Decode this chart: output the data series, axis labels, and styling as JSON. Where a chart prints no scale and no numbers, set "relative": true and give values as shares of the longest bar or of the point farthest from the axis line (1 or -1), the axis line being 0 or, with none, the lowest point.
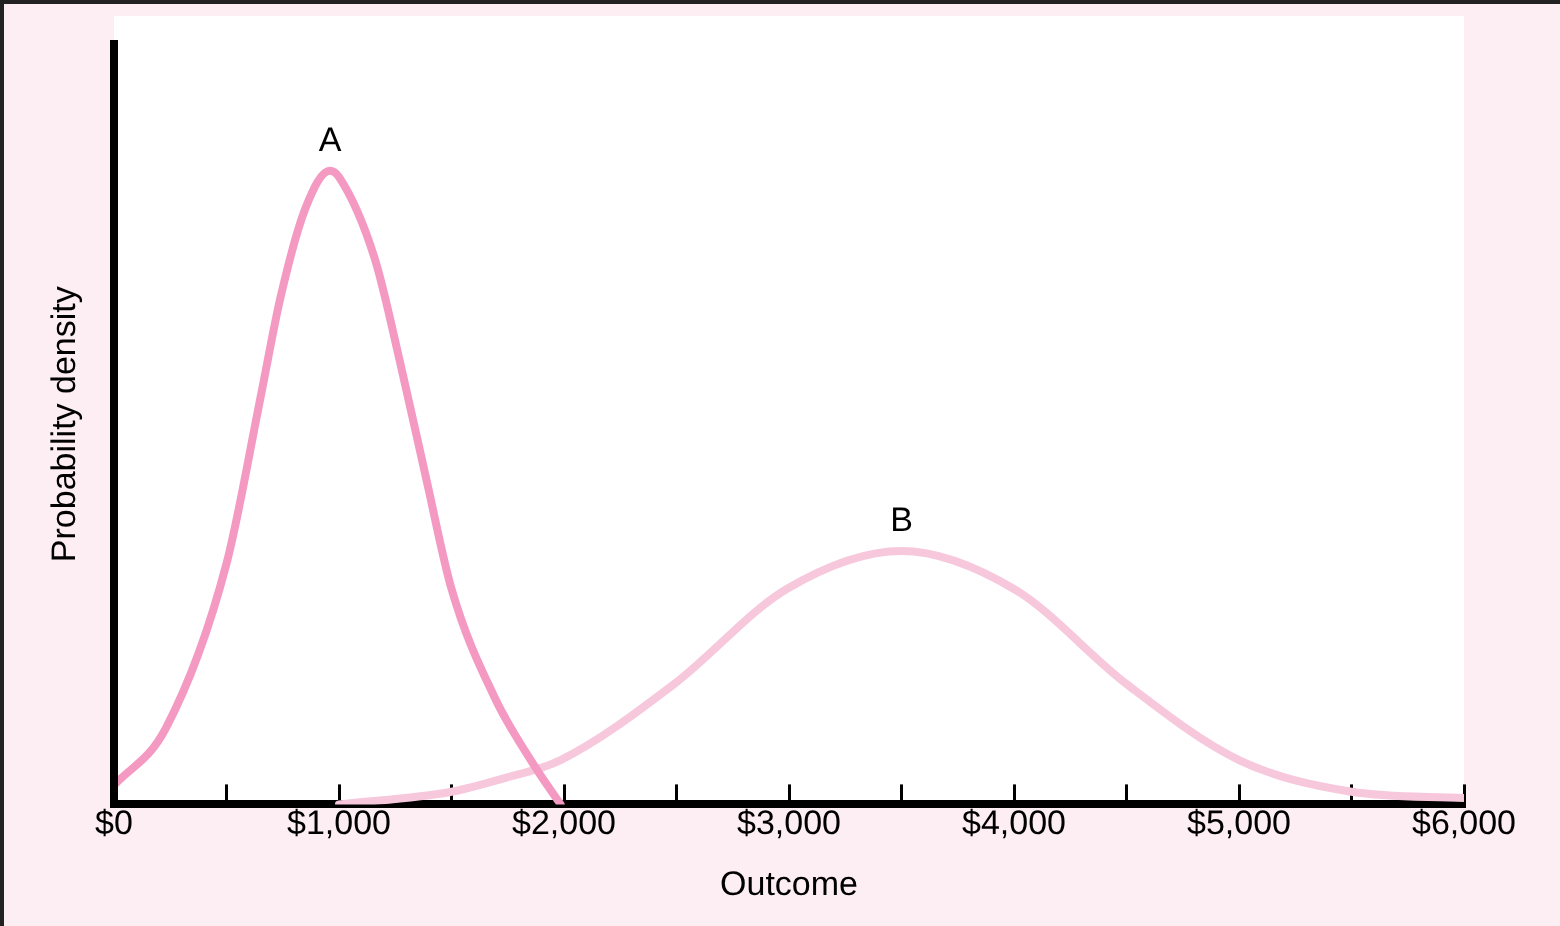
{
  "chart_data": {
    "type": "line",
    "xlabel": "Outcome",
    "ylabel": "Probability density",
    "relative": true,
    "marker": "none",
    "xlim": [
      0,
      6000
    ],
    "xticks": [
      {
        "value": 0,
        "label": "$0"
      },
      {
        "value": 500,
        "label": null
      },
      {
        "value": 1000,
        "label": "$1,000"
      },
      {
        "value": 1500,
        "label": null
      },
      {
        "value": 2000,
        "label": "$2,000"
      },
      {
        "value": 2500,
        "label": null
      },
      {
        "value": 3000,
        "label": "$3,000"
      },
      {
        "value": 3500,
        "label": null
      },
      {
        "value": 4000,
        "label": "$4,000"
      },
      {
        "value": 4500,
        "label": null
      },
      {
        "value": 5000,
        "label": "$5,000"
      },
      {
        "value": 5500,
        "label": null
      },
      {
        "value": 6000,
        "label": "$6,000"
      }
    ],
    "series": [
      {
        "name": "A",
        "color": "#f49ac2",
        "x": [
          0,
          230,
          500,
          650,
          740,
          850,
          960,
          1000,
          1160,
          1270,
          1390,
          1500,
          1690,
          1870,
          1985
        ],
        "values": [
          0.03,
          0.12,
          0.38,
          0.64,
          0.8,
          0.94,
          1,
          0.99,
          0.86,
          0.7,
          0.51,
          0.34,
          0.17,
          0.06,
          0
        ]
      },
      {
        "name": "B",
        "color": "#f7c8dc",
        "x": [
          1000,
          1500,
          1720,
          1985,
          2490,
          2990,
          3500,
          4000,
          4500,
          5000,
          5500,
          6000
        ],
        "values": [
          0,
          0.02,
          0.04,
          0.07,
          0.19,
          0.34,
          0.4,
          0.34,
          0.19,
          0.07,
          0.02,
          0.01
        ]
      }
    ]
  }
}
